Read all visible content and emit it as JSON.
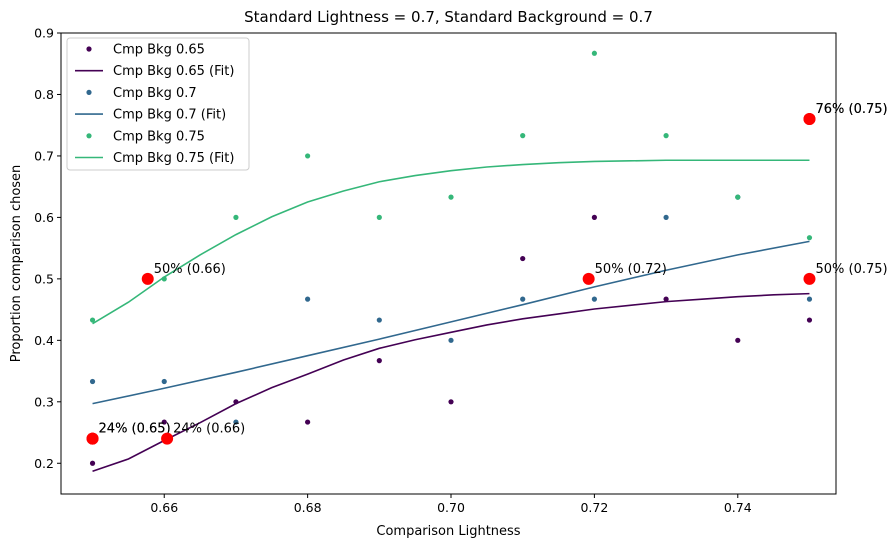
{
  "chart_data": {
    "type": "scatter",
    "title": "Standard Lightness = 0.7, Standard Background = 0.7",
    "xlabel": "Comparison Lightness",
    "ylabel": "Proportion comparison chosen",
    "xlim": [
      0.6456,
      0.7537
    ],
    "ylim": [
      0.15,
      0.9
    ],
    "xticks": [
      0.66,
      0.68,
      0.7,
      0.72,
      0.74
    ],
    "xtick_labels": [
      "0.66",
      "0.68",
      "0.70",
      "0.72",
      "0.74"
    ],
    "yticks": [
      0.2,
      0.3,
      0.4,
      0.5,
      0.6,
      0.7,
      0.8,
      0.9
    ],
    "ytick_labels": [
      "0.2",
      "0.3",
      "0.4",
      "0.5",
      "0.6",
      "0.7",
      "0.8",
      "0.9"
    ],
    "legend_position": "top-left",
    "grid": false,
    "series": [
      {
        "name": "Cmp Bkg 0.65",
        "fit_name": "Cmp Bkg 0.65 (Fit)",
        "color": "#440154",
        "x": [
          0.65,
          0.66,
          0.67,
          0.68,
          0.69,
          0.7,
          0.71,
          0.72,
          0.73,
          0.74,
          0.75
        ],
        "y": [
          0.2,
          0.267,
          0.3,
          0.267,
          0.367,
          0.3,
          0.533,
          0.6,
          0.467,
          0.4,
          0.433
        ],
        "fit": [
          [
            0.65,
            0.187
          ],
          [
            0.655,
            0.207
          ],
          [
            0.66,
            0.237
          ],
          [
            0.665,
            0.266
          ],
          [
            0.67,
            0.297
          ],
          [
            0.675,
            0.323
          ],
          [
            0.68,
            0.345
          ],
          [
            0.685,
            0.368
          ],
          [
            0.69,
            0.387
          ],
          [
            0.695,
            0.401
          ],
          [
            0.7,
            0.413
          ],
          [
            0.705,
            0.425
          ],
          [
            0.71,
            0.435
          ],
          [
            0.715,
            0.443
          ],
          [
            0.72,
            0.451
          ],
          [
            0.725,
            0.457
          ],
          [
            0.73,
            0.463
          ],
          [
            0.735,
            0.467
          ],
          [
            0.74,
            0.471
          ],
          [
            0.745,
            0.474
          ],
          [
            0.75,
            0.476
          ]
        ]
      },
      {
        "name": "Cmp Bkg 0.7",
        "fit_name": "Cmp Bkg 0.7 (Fit)",
        "color": "#31688e",
        "x": [
          0.65,
          0.66,
          0.67,
          0.68,
          0.69,
          0.7,
          0.71,
          0.72,
          0.73,
          0.74,
          0.75
        ],
        "y": [
          0.333,
          0.333,
          0.267,
          0.467,
          0.433,
          0.4,
          0.467,
          0.467,
          0.6,
          0.633,
          0.467
        ],
        "fit": [
          [
            0.65,
            0.297
          ],
          [
            0.66,
            0.322
          ],
          [
            0.67,
            0.348
          ],
          [
            0.68,
            0.375
          ],
          [
            0.69,
            0.402
          ],
          [
            0.7,
            0.43
          ],
          [
            0.71,
            0.458
          ],
          [
            0.72,
            0.487
          ],
          [
            0.73,
            0.514
          ],
          [
            0.74,
            0.539
          ],
          [
            0.75,
            0.561
          ]
        ]
      },
      {
        "name": "Cmp Bkg 0.75",
        "fit_name": "Cmp Bkg 0.75 (Fit)",
        "color": "#35b779",
        "x": [
          0.65,
          0.66,
          0.67,
          0.68,
          0.69,
          0.7,
          0.71,
          0.72,
          0.73,
          0.74,
          0.75
        ],
        "y": [
          0.433,
          0.5,
          0.6,
          0.7,
          0.6,
          0.633,
          0.733,
          0.867,
          0.733,
          0.633,
          0.567
        ],
        "fit": [
          [
            0.65,
            0.427
          ],
          [
            0.655,
            0.462
          ],
          [
            0.66,
            0.503
          ],
          [
            0.665,
            0.539
          ],
          [
            0.67,
            0.572
          ],
          [
            0.675,
            0.601
          ],
          [
            0.68,
            0.625
          ],
          [
            0.685,
            0.643
          ],
          [
            0.69,
            0.658
          ],
          [
            0.695,
            0.668
          ],
          [
            0.7,
            0.676
          ],
          [
            0.705,
            0.682
          ],
          [
            0.71,
            0.686
          ],
          [
            0.715,
            0.689
          ],
          [
            0.72,
            0.691
          ],
          [
            0.725,
            0.692
          ],
          [
            0.73,
            0.693
          ],
          [
            0.74,
            0.693
          ],
          [
            0.75,
            0.693
          ]
        ]
      }
    ],
    "annotations": [
      {
        "x": 0.65,
        "y": 0.24,
        "label": "24% (0.65)",
        "color": "#ff0000"
      },
      {
        "x": 0.65,
        "y": 0.24,
        "label": "24% (0.65)",
        "color": "#ff0000"
      },
      {
        "x": 0.6604,
        "y": 0.24,
        "label": "24% (0.66)",
        "color": "#ff0000"
      },
      {
        "x": 0.6577,
        "y": 0.5,
        "label": "50% (0.66)",
        "color": "#ff0000"
      },
      {
        "x": 0.7192,
        "y": 0.5,
        "label": "50% (0.72)",
        "color": "#ff0000"
      },
      {
        "x": 0.75,
        "y": 0.5,
        "label": "50% (0.75)",
        "color": "#ff0000"
      },
      {
        "x": 0.75,
        "y": 0.76,
        "label": "76% (0.75)",
        "color": "#ff0000"
      },
      {
        "x": 0.75,
        "y": 0.76,
        "label": "76% (0.75)",
        "color": "#ff0000"
      }
    ]
  }
}
